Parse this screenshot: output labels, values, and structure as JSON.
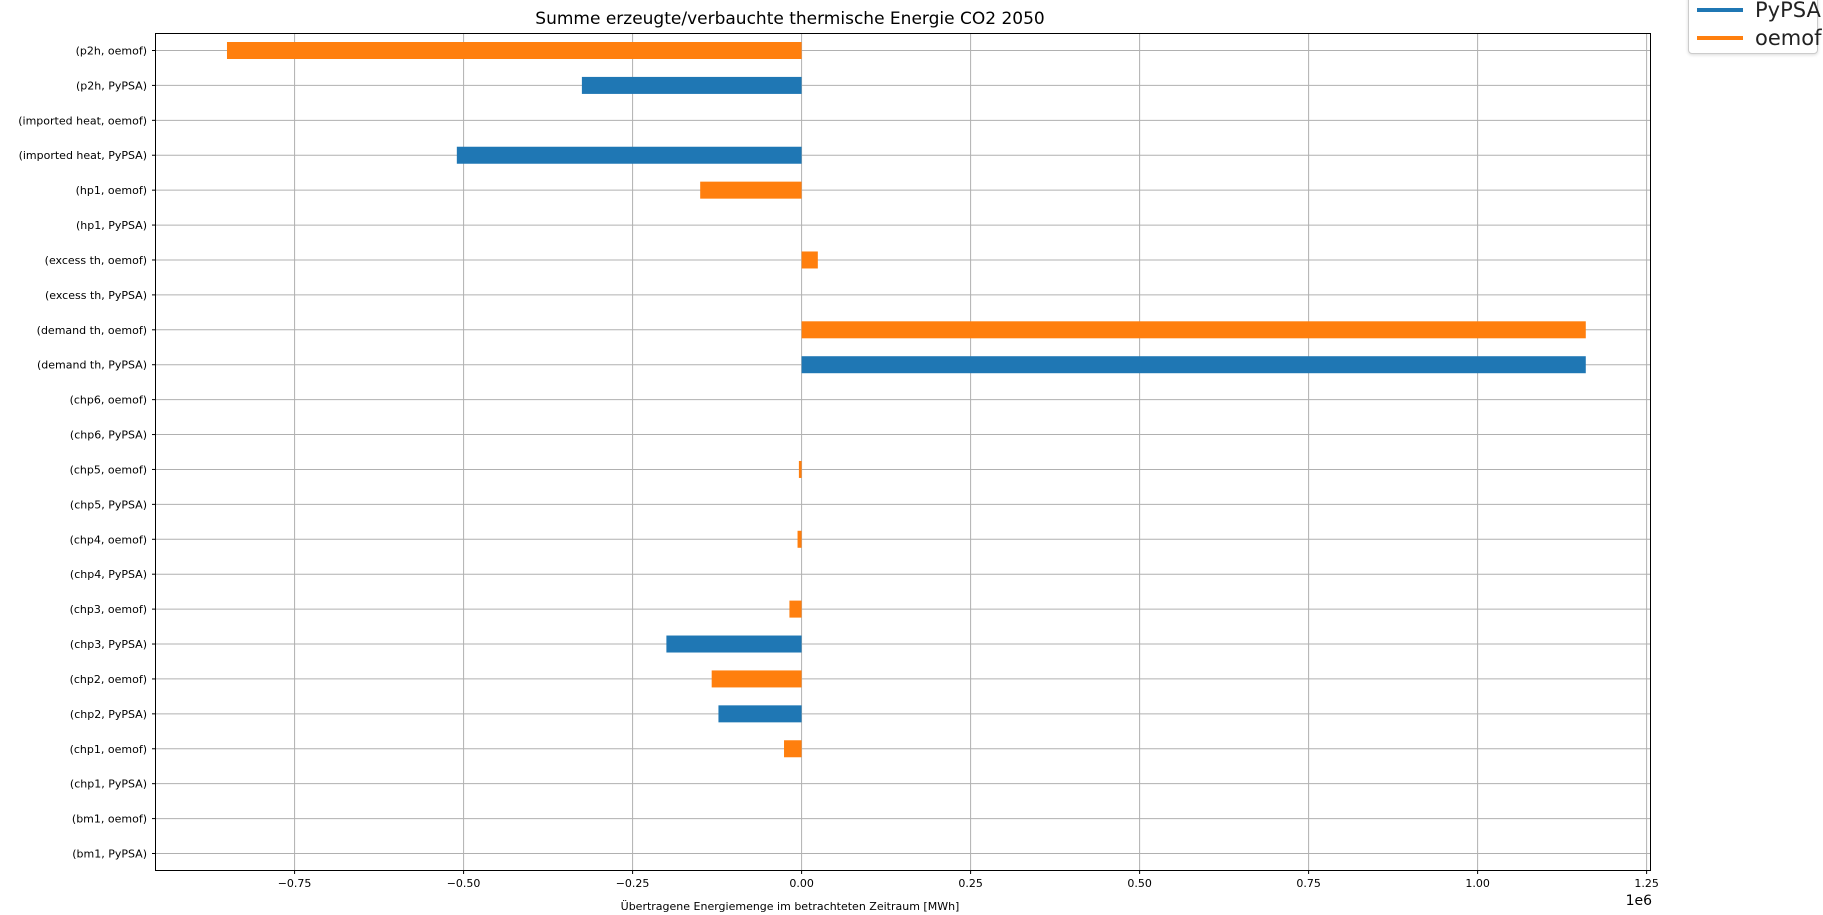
{
  "chart_data": {
    "type": "bar",
    "orientation": "horizontal",
    "title": "Summe erzeugte/verbauchte thermische Energie CO2 2050",
    "xlabel": "Übertragene Energiemenge im betrachteten Zeitraum [MWh]",
    "ylabel": "",
    "x_scale_label": "1e6",
    "xlim": [
      -0.955,
      1.255
    ],
    "xticks": [
      -0.75,
      -0.5,
      -0.25,
      0.0,
      0.25,
      0.5,
      0.75,
      1.0,
      1.25
    ],
    "xtick_labels": [
      "−0.75",
      "−0.50",
      "−0.25",
      "0.00",
      "0.25",
      "0.50",
      "0.75",
      "1.00",
      "1.25"
    ],
    "grid": true,
    "legend_position": "top-right",
    "categories": [
      "(p2h, oemof)",
      "(p2h, PyPSA)",
      "(imported heat, oemof)",
      "(imported heat, PyPSA)",
      "(hp1, oemof)",
      "(hp1, PyPSA)",
      "(excess th, oemof)",
      "(excess th, PyPSA)",
      "(demand th, oemof)",
      "(demand th, PyPSA)",
      "(chp6, oemof)",
      "(chp6, PyPSA)",
      "(chp5, oemof)",
      "(chp5, PyPSA)",
      "(chp4, oemof)",
      "(chp4, PyPSA)",
      "(chp3, oemof)",
      "(chp3, PyPSA)",
      "(chp2, oemof)",
      "(chp2, PyPSA)",
      "(chp1, oemof)",
      "(chp1, PyPSA)",
      "(bm1, oemof)",
      "(bm1, PyPSA)"
    ],
    "values": [
      -0.85,
      -0.325,
      0,
      -0.51,
      -0.15,
      0,
      0.024,
      0,
      1.16,
      1.16,
      0,
      0,
      -0.004,
      0,
      -0.006,
      0,
      -0.018,
      -0.2,
      -0.133,
      -0.123,
      -0.026,
      0,
      0,
      0
    ],
    "series_of_category": [
      "oemof",
      "PyPSA",
      "oemof",
      "PyPSA",
      "oemof",
      "PyPSA",
      "oemof",
      "PyPSA",
      "oemof",
      "PyPSA",
      "oemof",
      "PyPSA",
      "oemof",
      "PyPSA",
      "oemof",
      "PyPSA",
      "oemof",
      "PyPSA",
      "oemof",
      "PyPSA",
      "oemof",
      "PyPSA",
      "oemof",
      "PyPSA"
    ],
    "series": [
      {
        "name": "PyPSA",
        "color": "#1f77b4"
      },
      {
        "name": "oemof",
        "color": "#ff7f0e"
      }
    ]
  },
  "legend": {
    "items": [
      {
        "label": "PyPSA",
        "color": "#1f77b4"
      },
      {
        "label": "oemof",
        "color": "#ff7f0e"
      }
    ]
  }
}
